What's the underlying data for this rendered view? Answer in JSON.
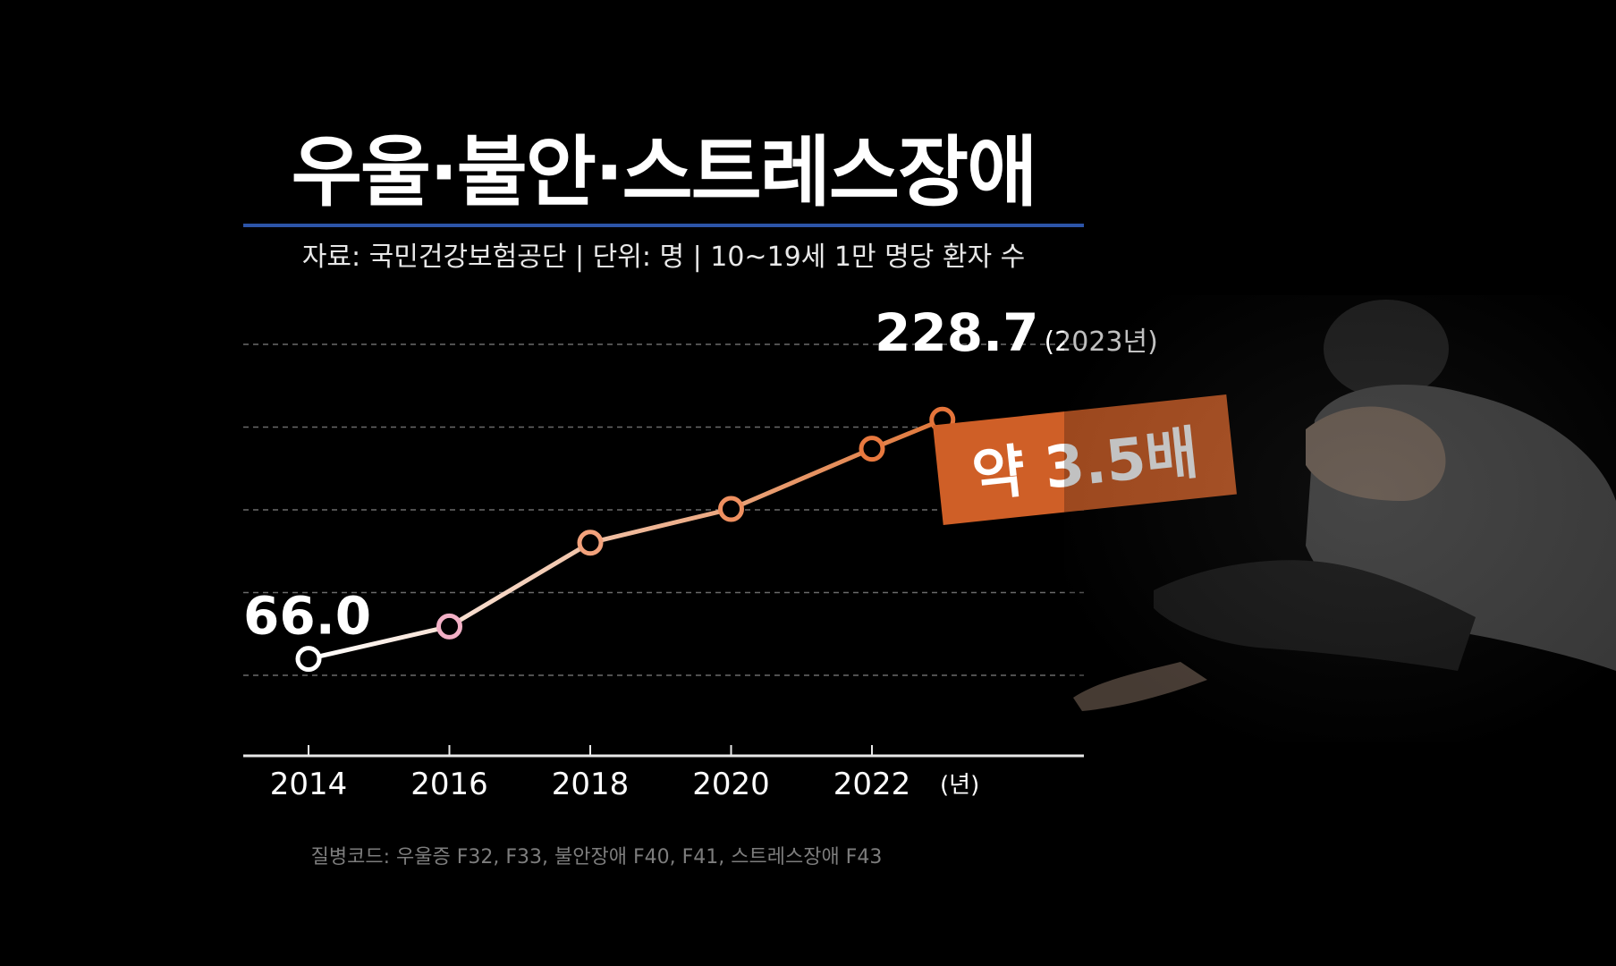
{
  "title": "우울·불안·스트레스장애",
  "subtitle": "자료: 국민건강보험공단   |   단위: 명   |   10~19세 1만 명당 환자 수",
  "footnote": "질병코드: 우울증 F32, F33, 불안장애 F40, F41, 스트레스장애 F43",
  "badge": "약 3.5배",
  "colors": {
    "background": "#000000",
    "accent": "#cf5f27",
    "rule": "#2c54a8",
    "line_start": "#ffffff",
    "line_end": "#e0773a"
  },
  "chart_data": {
    "type": "line",
    "title": "우울·불안·스트레스장애",
    "x": [
      2014,
      2016,
      2018,
      2020,
      2022,
      2023
    ],
    "tick_labels": [
      "2014",
      "2016",
      "2018",
      "2020",
      "2022"
    ],
    "x_unit": "(년)",
    "series": [
      {
        "values": [
          66.0,
          88,
          145,
          168,
          209,
          228.7
        ]
      }
    ],
    "labels": {
      "first_value": "66.0",
      "last_value": "228.7",
      "last_value_note": "(2023년)"
    },
    "ylim": [
      0,
      280
    ],
    "grid": true
  }
}
